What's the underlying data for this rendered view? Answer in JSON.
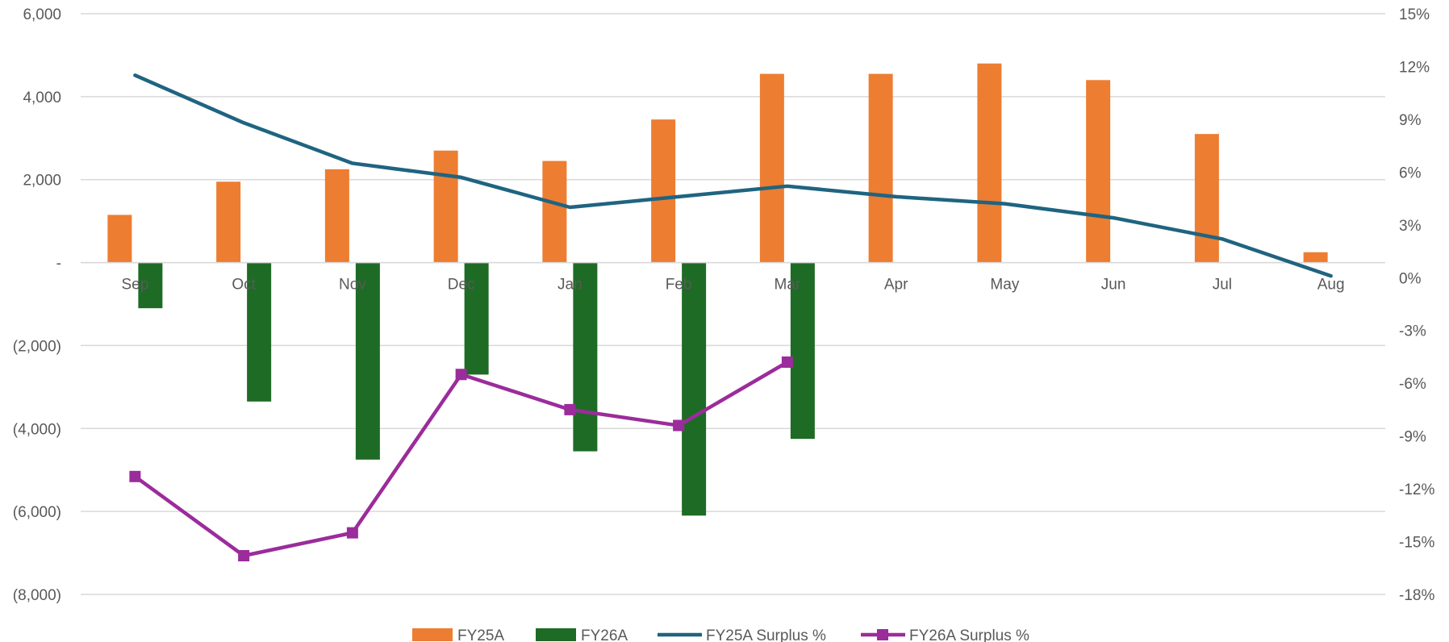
{
  "chart_data": {
    "type": "bar",
    "title": "",
    "categories": [
      "Sep",
      "Oct",
      "Nov",
      "Dec",
      "Jan",
      "Feb",
      "Mar",
      "Apr",
      "May",
      "Jun",
      "Jul",
      "Aug"
    ],
    "series": [
      {
        "name": "FY25A",
        "kind": "bar",
        "axis": "left",
        "color": "#ED7D31",
        "values": [
          1150,
          1950,
          2250,
          2700,
          2450,
          3450,
          4550,
          4550,
          4800,
          4400,
          3100,
          250
        ]
      },
      {
        "name": "FY26A",
        "kind": "bar",
        "axis": "left",
        "color": "#1E6B26",
        "values": [
          -1100,
          -3350,
          -4750,
          -2700,
          -4550,
          -6100,
          -4250,
          null,
          null,
          null,
          null,
          null
        ]
      },
      {
        "name": "FY25A Surplus %",
        "kind": "line",
        "axis": "right",
        "color": "#1F6480",
        "marker": "none",
        "values": [
          11.5,
          8.8,
          6.5,
          5.7,
          4.0,
          4.6,
          5.2,
          4.6,
          4.2,
          3.4,
          2.2,
          0.1
        ]
      },
      {
        "name": "FY26A Surplus %",
        "kind": "line",
        "axis": "right",
        "color": "#9B2C9B",
        "marker": "square",
        "values": [
          -11.3,
          -15.8,
          -14.5,
          -5.5,
          -7.5,
          -8.4,
          -4.8,
          null,
          null,
          null,
          null,
          null
        ]
      }
    ],
    "y_left": {
      "range": [
        -8000,
        6000
      ],
      "ticks": [
        6000,
        4000,
        2000,
        0,
        -2000,
        -4000,
        -6000,
        -8000
      ],
      "tick_labels": [
        "6,000",
        "4,000",
        "2,000",
        "-",
        "(2,000)",
        "(4,000)",
        "(6,000)",
        "(8,000)"
      ]
    },
    "y_right": {
      "range": [
        -18,
        15
      ],
      "tick_labels": [
        "15%",
        "12%",
        "9%",
        "6%",
        "3%",
        "0%",
        "-3%",
        "-6%",
        "-9%",
        "-12%",
        "-15%",
        "-18%"
      ]
    },
    "grid": true,
    "legend_position": "bottom"
  }
}
